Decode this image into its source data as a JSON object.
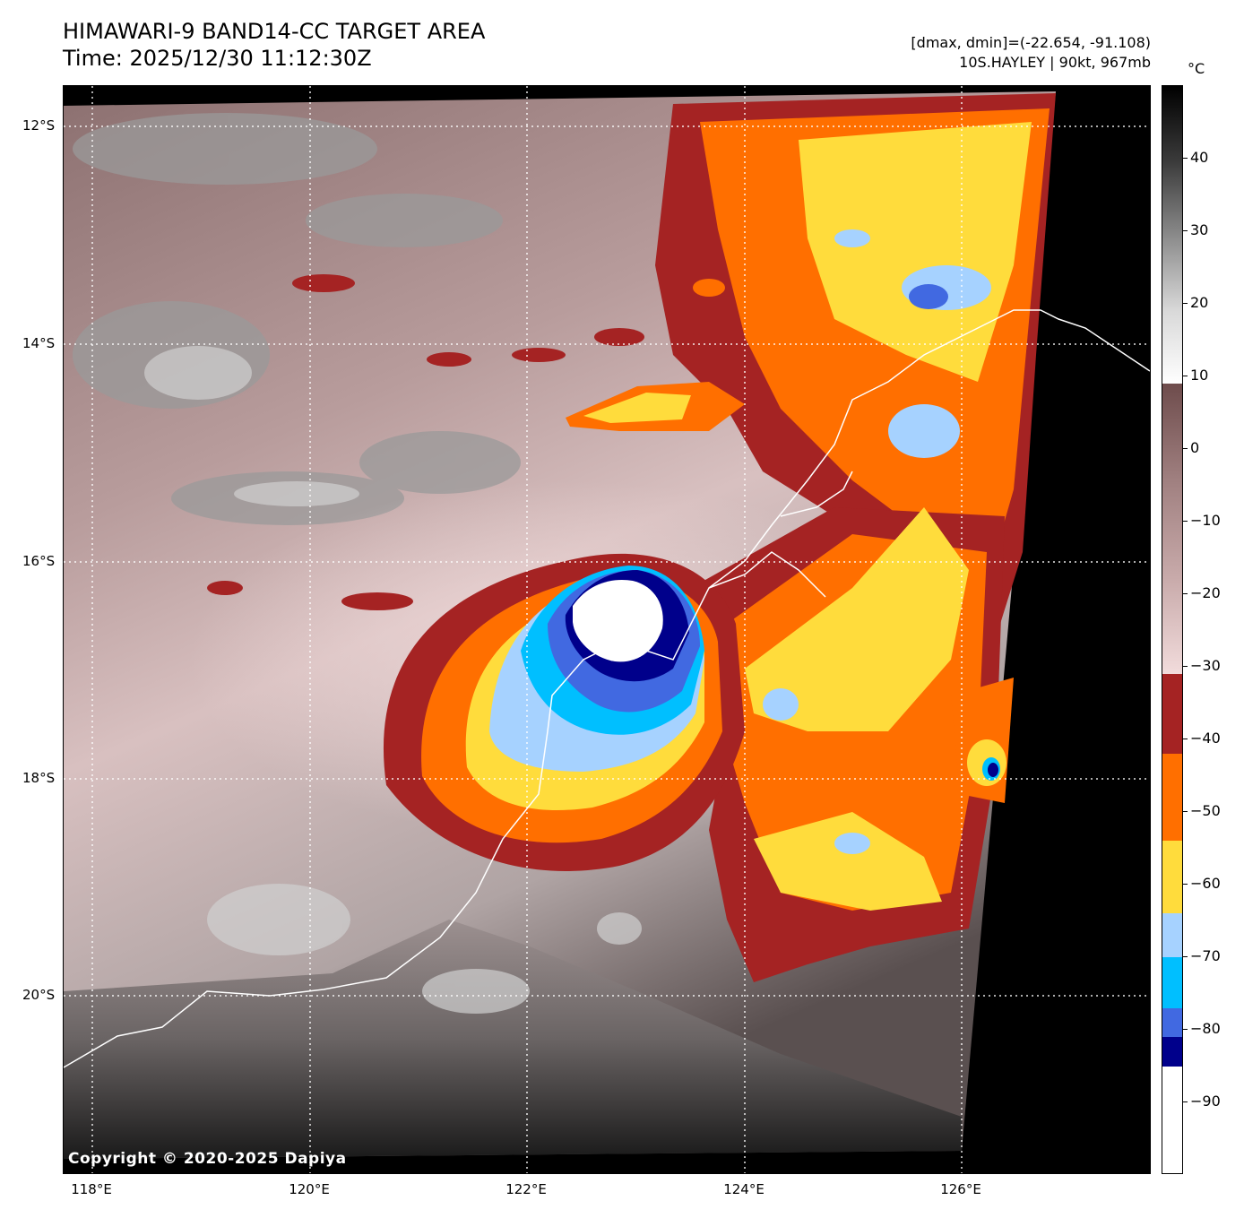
{
  "header": {
    "title_line1": "HIMAWARI-9 BAND14-CC TARGET AREA",
    "title_line2": "Time: 2025/12/30 11:12:30Z",
    "range_text": "[dmax, dmin]=(-22.654, -91.108)",
    "storm_text": "10S.HAYLEY | 90kt, 967mb"
  },
  "map": {
    "copyright": "Copyright © 2020-2025 Dapiya",
    "lat_labels": [
      "12°S",
      "14°S",
      "16°S",
      "18°S",
      "20°S"
    ],
    "lon_labels": [
      "118°E",
      "120°E",
      "122°E",
      "124°E",
      "126°E"
    ],
    "coastline_color": "#ffffff",
    "gridline_color": "#ffffff"
  },
  "colorbar": {
    "unit": "°C",
    "tick_labels": [
      "40",
      "30",
      "20",
      "10",
      "0",
      "−10",
      "−20",
      "−30",
      "−40",
      "−50",
      "−60",
      "−70",
      "−80",
      "−90"
    ],
    "tick_values": [
      40,
      30,
      20,
      10,
      0,
      -10,
      -20,
      -30,
      -40,
      -50,
      -60,
      -70,
      -80,
      -90
    ],
    "range": [
      -100,
      50
    ],
    "segments": [
      {
        "from": 50,
        "to": 9,
        "gradient": [
          "#000000",
          "#3a3a3a",
          "#8a8a8a",
          "#d8d8d8",
          "#ffffff"
        ]
      },
      {
        "from": 9,
        "to": -31,
        "gradient": [
          "#6e4c4c",
          "#a08080",
          "#c8aaaa",
          "#f2dcdc"
        ]
      },
      {
        "from": -31,
        "to": -42,
        "color": "#a52323"
      },
      {
        "from": -42,
        "to": -54,
        "color": "#ff6f00"
      },
      {
        "from": -54,
        "to": -64,
        "color": "#ffdc3c"
      },
      {
        "from": -64,
        "to": -70,
        "color": "#a6d2ff"
      },
      {
        "from": -70,
        "to": -77,
        "color": "#00bfff"
      },
      {
        "from": -77,
        "to": -81,
        "color": "#4169e1"
      },
      {
        "from": -81,
        "to": -85,
        "color": "#00008b"
      },
      {
        "from": -85,
        "to": -100,
        "color": "#ffffff"
      }
    ]
  }
}
